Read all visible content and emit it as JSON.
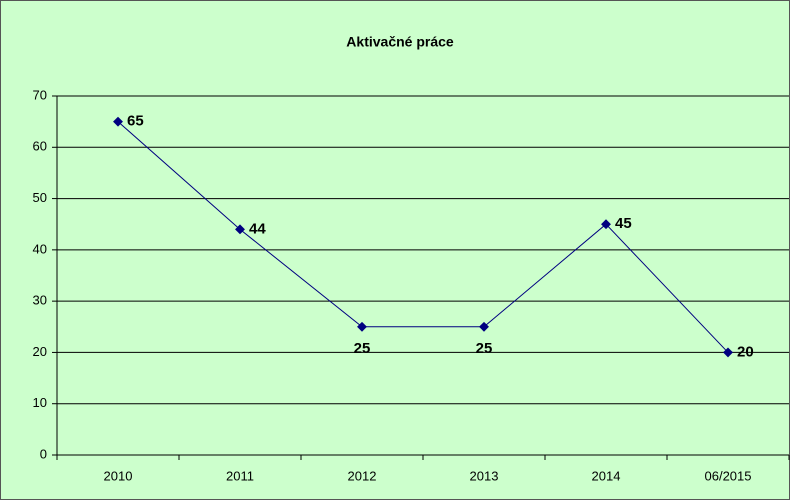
{
  "chart_data": {
    "type": "line",
    "title": "Aktivačné práce",
    "categories": [
      "2010",
      "2011",
      "2012",
      "2013",
      "2014",
      "06/2015"
    ],
    "series": [
      {
        "name": "Aktivačné práce",
        "color": "#000080",
        "values": [
          65,
          44,
          25,
          25,
          45,
          20
        ]
      }
    ],
    "ylim": [
      0,
      70
    ],
    "yticks": [
      0,
      10,
      20,
      30,
      40,
      50,
      60,
      70
    ],
    "grid": true
  }
}
